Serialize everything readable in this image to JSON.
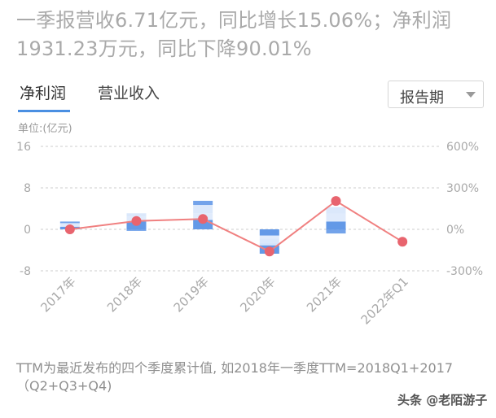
{
  "headline": {
    "line1": "一季报营收6.71亿元，同比增长15.06%；净利润",
    "line2": "1931.23万元，同比下降90.01%"
  },
  "tabs": [
    {
      "label": "净利润",
      "active": true
    },
    {
      "label": "营业收入",
      "active": false
    }
  ],
  "period_select": {
    "value": "报告期",
    "icon": "chevron-down-icon"
  },
  "unit_label": "单位:(亿元)",
  "footnote": "TTM为最近发布的四个季度累计值, 如2018年一季度TTM=2018Q1+2017（Q2+Q3+Q4)",
  "watermark": "头条 @老陌游子",
  "colors": {
    "bar": "#5b93e6",
    "bar_light": "#cfe0fa",
    "line": "#f08080",
    "point": "#e8646e",
    "grid": "#cccccc",
    "axis_text": "#a9a9a9"
  },
  "chart_data": {
    "type": "bar",
    "categories": [
      "2017年",
      "2018年",
      "2019年",
      "2020年",
      "2021年",
      "2022年Q1"
    ],
    "y_left": {
      "ticks": [
        "16",
        "8",
        "0",
        "-8"
      ],
      "ylim": [
        -8,
        16
      ]
    },
    "y_right": {
      "ticks": [
        "600%",
        "300%",
        "0%",
        "-300%"
      ],
      "ylim": [
        -300,
        600
      ]
    },
    "grid": true,
    "series": [
      {
        "type": "stacked_bar",
        "note": "quarterly net profit stacks per year",
        "stacks": [
          [
            0.5,
            0.4,
            0.3,
            0.3
          ],
          [
            1.5,
            1.0,
            0.6,
            -0.3
          ],
          [
            1.8,
            1.3,
            1.6,
            0.8
          ],
          [
            -1.2,
            -0.6,
            -0.8,
            -0.5,
            -1.6
          ],
          [
            1.5,
            1.5,
            1.3,
            -0.8
          ],
          []
        ]
      },
      {
        "type": "line",
        "note": "year-over-year growth, right axis",
        "values": [
          0,
          60,
          75,
          -160,
          205,
          -90
        ]
      }
    ]
  }
}
